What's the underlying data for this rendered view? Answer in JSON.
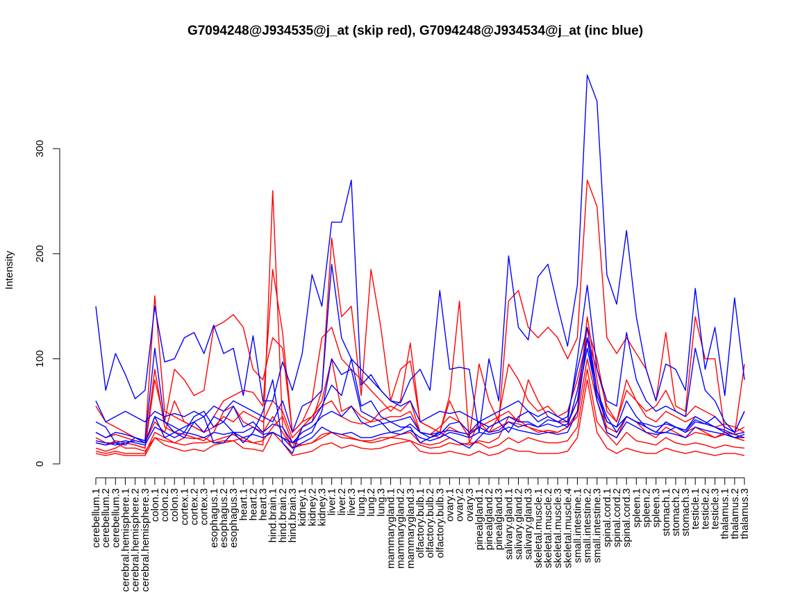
{
  "chart_data": {
    "type": "line",
    "title": "G7094248@J934535@j_at (skip red), G7094248@J934534@j_at (inc blue)",
    "xlabel": "",
    "ylabel": "Intensity",
    "ylim": [
      0,
      300
    ],
    "y_ticks": [
      0,
      100,
      200,
      300
    ],
    "categories": [
      "cerebellum.1",
      "cerebellum.2",
      "cerebellum.3",
      "cerebral.hemisphere.1",
      "cerebral.hemisphere.2",
      "cerebral.hemisphere.3",
      "colon.1",
      "colon.2",
      "colon.3",
      "cortex.1",
      "cortex.2",
      "cortex.3",
      "esophagus.1",
      "esophagus.2",
      "esophagus.3",
      "heart.1",
      "heart.2",
      "heart.3",
      "hind.brain.1",
      "hind.brain.2",
      "hind.brain.3",
      "kidney.1",
      "kidney.2",
      "kidney.3",
      "liver.1",
      "liver.2",
      "liver.3",
      "lung.1",
      "lung.2",
      "lung.3",
      "mammarygland.1",
      "mammarygland.2",
      "mammarygland.3",
      "olfactory.bulb.1",
      "olfactory.bulb.2",
      "olfactory.bulb.3",
      "ovary.1",
      "ovary.2",
      "ovary.3",
      "pinealgland.1",
      "pinealgland.2",
      "pinealgland.3",
      "salivary.gland.1",
      "salivary.gland.2",
      "salivary.gland.3",
      "skeletal.muscle.1",
      "skeletal.muscle.2",
      "skeletal.muscle.3",
      "skeletal.muscle.4",
      "small.intestine.1",
      "small.intestine.2",
      "small.intestine.3",
      "spinal.cord.1",
      "spinal.cord.2",
      "spinal.cord.3",
      "spleen.1",
      "spleen.2",
      "spleen.3",
      "stomach.1",
      "stomach.2",
      "stomach.3",
      "testicle.1",
      "testicle.2",
      "testicle.3",
      "thalamus.1",
      "thalamus.2",
      "thalamus.3"
    ],
    "series": [
      {
        "color": "#ff0000",
        "values": [
          25,
          20,
          20,
          15,
          15,
          12,
          25,
          22,
          20,
          25,
          24,
          25,
          20,
          22,
          22,
          25,
          20,
          22,
          35,
          45,
          20,
          18,
          20,
          28,
          30,
          25,
          24,
          22,
          22,
          25,
          25,
          24,
          22,
          18,
          15,
          16,
          20,
          18,
          20,
          20,
          15,
          18,
          25,
          20,
          25,
          22,
          20,
          20,
          22,
          35,
          90,
          40,
          28,
          18,
          30,
          22,
          20,
          18,
          25,
          20,
          18,
          20,
          18,
          15,
          18,
          16,
          15
        ]
      },
      {
        "color": "#ff0000",
        "values": [
          12,
          10,
          12,
          10,
          10,
          10,
          30,
          25,
          20,
          18,
          20,
          20,
          22,
          25,
          28,
          22,
          20,
          18,
          260,
          35,
          15,
          18,
          20,
          25,
          30,
          28,
          25,
          22,
          20,
          22,
          25,
          28,
          30,
          20,
          18,
          20,
          25,
          20,
          18,
          22,
          20,
          25,
          45,
          42,
          35,
          30,
          32,
          30,
          35,
          50,
          140,
          80,
          30,
          25,
          45,
          40,
          30,
          25,
          35,
          30,
          25,
          30,
          28,
          25,
          28,
          25,
          22
        ]
      },
      {
        "color": "#ff0000",
        "values": [
          55,
          40,
          35,
          30,
          25,
          22,
          160,
          50,
          45,
          40,
          35,
          30,
          45,
          60,
          65,
          70,
          68,
          55,
          185,
          125,
          30,
          40,
          45,
          60,
          100,
          50,
          55,
          45,
          40,
          50,
          55,
          50,
          60,
          30,
          28,
          35,
          45,
          40,
          30,
          35,
          40,
          45,
          95,
          80,
          60,
          50,
          55,
          45,
          50,
          80,
          120,
          90,
          55,
          40,
          70,
          60,
          45,
          40,
          50,
          45,
          40,
          45,
          40,
          35,
          38,
          35,
          30
        ]
      },
      {
        "color": "#ff0000",
        "values": [
          15,
          12,
          15,
          20,
          18,
          15,
          90,
          35,
          30,
          28,
          25,
          22,
          30,
          50,
          55,
          40,
          35,
          30,
          45,
          30,
          15,
          35,
          40,
          70,
          215,
          140,
          150,
          65,
          185,
          130,
          60,
          90,
          98,
          40,
          35,
          30,
          60,
          40,
          25,
          95,
          60,
          40,
          155,
          165,
          130,
          120,
          130,
          120,
          100,
          120,
          270,
          245,
          120,
          105,
          120,
          105,
          90,
          60,
          125,
          55,
          50,
          140,
          100,
          100,
          30,
          28,
          95
        ]
      },
      {
        "color": "#ff0000",
        "values": [
          10,
          8,
          10,
          8,
          8,
          8,
          25,
          18,
          15,
          12,
          14,
          12,
          18,
          20,
          22,
          15,
          14,
          12,
          30,
          20,
          8,
          10,
          12,
          18,
          20,
          15,
          18,
          15,
          14,
          15,
          18,
          20,
          22,
          12,
          10,
          10,
          12,
          10,
          8,
          12,
          8,
          10,
          15,
          12,
          12,
          10,
          10,
          10,
          12,
          25,
          80,
          30,
          15,
          10,
          15,
          12,
          10,
          10,
          15,
          12,
          10,
          12,
          10,
          8,
          10,
          10,
          8
        ]
      },
      {
        "color": "#ff0000",
        "values": [
          20,
          18,
          22,
          20,
          18,
          15,
          80,
          40,
          90,
          80,
          65,
          70,
          130,
          135,
          142,
          130,
          90,
          80,
          120,
          110,
          30,
          40,
          60,
          120,
          130,
          100,
          90,
          80,
          70,
          60,
          50,
          60,
          115,
          40,
          35,
          30,
          65,
          155,
          20,
          40,
          30,
          45,
          50,
          40,
          80,
          60,
          45,
          40,
          40,
          60,
          130,
          100,
          50,
          40,
          80,
          60,
          50,
          55,
          70,
          50,
          45,
          55,
          50,
          45,
          35,
          30,
          35
        ]
      },
      {
        "color": "#ff0000",
        "values": [
          30,
          25,
          28,
          25,
          22,
          20,
          40,
          30,
          60,
          40,
          35,
          30,
          35,
          45,
          40,
          50,
          45,
          40,
          60,
          50,
          25,
          35,
          45,
          55,
          60,
          45,
          40,
          38,
          40,
          42,
          45,
          45,
          50,
          30,
          28,
          25,
          35,
          30,
          28,
          35,
          30,
          35,
          40,
          38,
          35,
          32,
          30,
          30,
          35,
          45,
          100,
          60,
          35,
          30,
          45,
          40,
          35,
          30,
          40,
          35,
          30,
          35,
          30,
          25,
          30,
          28,
          25
        ]
      },
      {
        "color": "#0000ff",
        "values": [
          150,
          70,
          105,
          85,
          62,
          70,
          150,
          97,
          100,
          120,
          125,
          105,
          132,
          105,
          110,
          65,
          122,
          60,
          60,
          97,
          70,
          105,
          180,
          150,
          230,
          230,
          270,
          75,
          85,
          70,
          60,
          58,
          80,
          90,
          70,
          165,
          90,
          92,
          90,
          30,
          100,
          60,
          198,
          130,
          118,
          178,
          190,
          150,
          112,
          170,
          370,
          345,
          180,
          152,
          222,
          140,
          90,
          60,
          95,
          90,
          70,
          167,
          90,
          130,
          65,
          158,
          80
        ]
      },
      {
        "color": "#0000ff",
        "values": [
          60,
          40,
          45,
          50,
          45,
          40,
          50,
          45,
          48,
          45,
          50,
          45,
          55,
          50,
          60,
          55,
          50,
          45,
          40,
          60,
          30,
          55,
          60,
          70,
          190,
          120,
          100,
          90,
          80,
          70,
          60,
          55,
          60,
          40,
          45,
          50,
          48,
          50,
          45,
          40,
          45,
          50,
          55,
          60,
          50,
          45,
          50,
          45,
          40,
          100,
          170,
          90,
          60,
          55,
          125,
          80,
          60,
          50,
          55,
          50,
          45,
          110,
          70,
          60,
          40,
          30,
          50
        ]
      },
      {
        "color": "#0000ff",
        "values": [
          40,
          35,
          20,
          18,
          25,
          20,
          45,
          25,
          30,
          35,
          40,
          30,
          45,
          40,
          55,
          35,
          40,
          30,
          38,
          35,
          20,
          25,
          30,
          50,
          100,
          85,
          90,
          50,
          45,
          40,
          30,
          32,
          38,
          30,
          25,
          28,
          38,
          40,
          30,
          40,
          35,
          40,
          45,
          40,
          40,
          35,
          42,
          40,
          35,
          70,
          120,
          70,
          40,
          35,
          60,
          45,
          35,
          30,
          40,
          35,
          32,
          45,
          40,
          35,
          30,
          25,
          28
        ]
      },
      {
        "color": "#0000ff",
        "values": [
          20,
          18,
          20,
          22,
          20,
          18,
          35,
          30,
          25,
          30,
          28,
          25,
          30,
          28,
          30,
          25,
          28,
          25,
          30,
          25,
          15,
          20,
          25,
          35,
          30,
          28,
          30,
          25,
          25,
          28,
          30,
          28,
          32,
          25,
          22,
          25,
          30,
          28,
          25,
          30,
          28,
          30,
          35,
          32,
          30,
          28,
          30,
          28,
          30,
          50,
          120,
          60,
          30,
          25,
          40,
          35,
          30,
          28,
          30,
          28,
          25,
          35,
          32,
          30,
          28,
          25,
          25
        ]
      },
      {
        "color": "#0000ff",
        "values": [
          22,
          20,
          18,
          20,
          22,
          20,
          45,
          40,
          30,
          25,
          40,
          45,
          20,
          20,
          30,
          20,
          30,
          50,
          80,
          20,
          10,
          35,
          40,
          55,
          75,
          65,
          100,
          55,
          60,
          45,
          40,
          35,
          35,
          20,
          25,
          30,
          25,
          20,
          15,
          25,
          35,
          40,
          30,
          45,
          50,
          40,
          45,
          40,
          45,
          90,
          130,
          70,
          45,
          30,
          45,
          40,
          35,
          30,
          30,
          35,
          30,
          40,
          38,
          45,
          35,
          30,
          50
        ]
      },
      {
        "color": "#0000ff",
        "values": [
          30,
          25,
          30,
          28,
          25,
          22,
          110,
          40,
          35,
          30,
          45,
          50,
          35,
          40,
          30,
          30,
          35,
          28,
          30,
          25,
          20,
          30,
          35,
          45,
          50,
          45,
          55,
          40,
          35,
          38,
          40,
          42,
          45,
          30,
          28,
          30,
          32,
          30,
          28,
          35,
          30,
          32,
          40,
          35,
          38,
          35,
          38,
          35,
          38,
          60,
          110,
          65,
          40,
          35,
          45,
          40,
          38,
          35,
          38,
          35,
          32,
          42,
          38,
          35,
          32,
          28,
          30
        ]
      }
    ]
  }
}
